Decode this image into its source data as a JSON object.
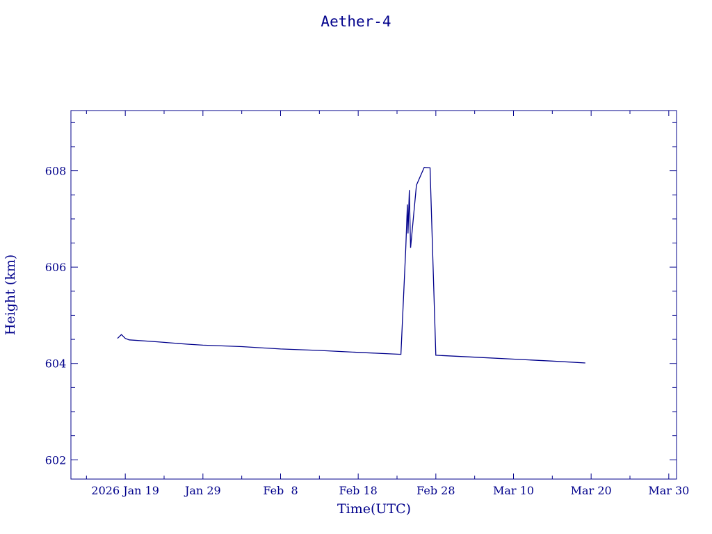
{
  "colors": {
    "ink": "#00008b",
    "background": "#ffffff"
  },
  "chart_data": {
    "type": "line",
    "title": "Aether-4",
    "xlabel": "Time(UTC)",
    "ylabel": "Height (km)",
    "grid": false,
    "x_axis": {
      "min": "2026-01-12",
      "max": "2026-03-31",
      "ticks": [
        {
          "date": "2026-01-19",
          "label": "2026 Jan 19"
        },
        {
          "date": "2026-01-29",
          "label": "Jan 29"
        },
        {
          "date": "2026-02-08",
          "label": "Feb  8"
        },
        {
          "date": "2026-02-18",
          "label": "Feb 18"
        },
        {
          "date": "2026-02-28",
          "label": "Feb 28"
        },
        {
          "date": "2026-03-10",
          "label": "Mar 10"
        },
        {
          "date": "2026-03-20",
          "label": "Mar 20"
        },
        {
          "date": "2026-03-30",
          "label": "Mar 30"
        }
      ]
    },
    "y_axis": {
      "min": 601.6,
      "max": 609.25,
      "ticks": [
        602,
        604,
        606,
        608
      ],
      "tick_labels": [
        "602",
        "604",
        "606",
        "608"
      ]
    },
    "series": [
      {
        "color": "#00008b",
        "points": [
          [
            "2026-01-18T00:00",
            604.52
          ],
          [
            "2026-01-18T12:00",
            604.6
          ],
          [
            "2026-01-19T00:00",
            604.52
          ],
          [
            "2026-01-19T12:00",
            604.49
          ],
          [
            "2026-01-23T00:00",
            604.45
          ],
          [
            "2026-01-27T00:00",
            604.4
          ],
          [
            "2026-01-29T00:00",
            604.38
          ],
          [
            "2026-02-03T00:00",
            604.35
          ],
          [
            "2026-02-08T00:00",
            604.3
          ],
          [
            "2026-02-13T00:00",
            604.27
          ],
          [
            "2026-02-18T00:00",
            604.23
          ],
          [
            "2026-02-23T12:00",
            604.19
          ],
          [
            "2026-02-24T03:00",
            606.4
          ],
          [
            "2026-02-24T08:00",
            607.3
          ],
          [
            "2026-02-24T10:00",
            606.7
          ],
          [
            "2026-02-24T14:00",
            607.6
          ],
          [
            "2026-02-24T18:00",
            606.4
          ],
          [
            "2026-02-25T12:00",
            607.7
          ],
          [
            "2026-02-26T12:00",
            608.07
          ],
          [
            "2026-02-27T06:00",
            608.06
          ],
          [
            "2026-02-28T00:00",
            604.17
          ],
          [
            "2026-03-05T00:00",
            604.13
          ],
          [
            "2026-03-10T00:00",
            604.09
          ],
          [
            "2026-03-15T00:00",
            604.05
          ],
          [
            "2026-03-19T06:00",
            604.01
          ]
        ]
      }
    ]
  }
}
